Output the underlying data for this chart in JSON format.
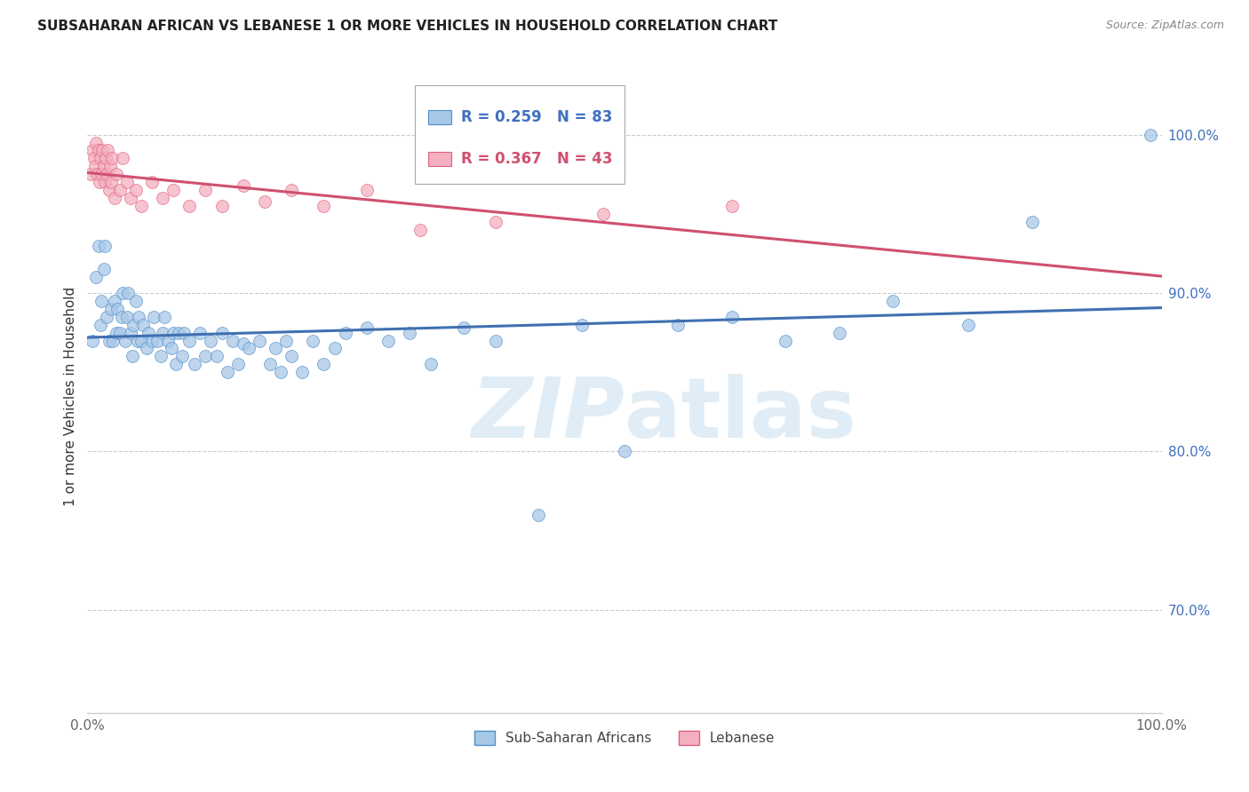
{
  "title": "SUBSAHARAN AFRICAN VS LEBANESE 1 OR MORE VEHICLES IN HOUSEHOLD CORRELATION CHART",
  "source": "Source: ZipAtlas.com",
  "ylabel": "1 or more Vehicles in Household",
  "ytick_labels": [
    "70.0%",
    "80.0%",
    "90.0%",
    "100.0%"
  ],
  "ytick_values": [
    0.7,
    0.8,
    0.9,
    1.0
  ],
  "xlim": [
    0.0,
    1.0
  ],
  "ylim": [
    0.635,
    1.035
  ],
  "legend_label1": "Sub-Saharan Africans",
  "legend_label2": "Lebanese",
  "r1": 0.259,
  "n1": 83,
  "r2": 0.367,
  "n2": 43,
  "color_blue": "#a8c8e8",
  "color_blue_edge": "#5090c8",
  "color_blue_line": "#4070b0",
  "color_pink": "#f4b0c0",
  "color_pink_edge": "#e06080",
  "color_pink_line": "#d05070",
  "color_blue_text": "#4070c0",
  "color_pink_text": "#d05070",
  "watermark_color": "#c8dff0",
  "blue_x": [
    0.005,
    0.008,
    0.01,
    0.012,
    0.013,
    0.015,
    0.016,
    0.018,
    0.02,
    0.022,
    0.024,
    0.025,
    0.027,
    0.028,
    0.03,
    0.032,
    0.033,
    0.035,
    0.037,
    0.038,
    0.04,
    0.042,
    0.043,
    0.045,
    0.047,
    0.048,
    0.05,
    0.052,
    0.055,
    0.057,
    0.06,
    0.062,
    0.065,
    0.068,
    0.07,
    0.072,
    0.075,
    0.078,
    0.08,
    0.082,
    0.085,
    0.088,
    0.09,
    0.095,
    0.1,
    0.105,
    0.11,
    0.115,
    0.12,
    0.125,
    0.13,
    0.135,
    0.14,
    0.145,
    0.15,
    0.16,
    0.17,
    0.175,
    0.18,
    0.185,
    0.19,
    0.2,
    0.21,
    0.22,
    0.23,
    0.24,
    0.26,
    0.28,
    0.3,
    0.32,
    0.35,
    0.38,
    0.42,
    0.46,
    0.5,
    0.55,
    0.6,
    0.65,
    0.7,
    0.75,
    0.82,
    0.88,
    0.99
  ],
  "blue_y": [
    0.87,
    0.91,
    0.93,
    0.88,
    0.895,
    0.915,
    0.93,
    0.885,
    0.87,
    0.89,
    0.87,
    0.895,
    0.875,
    0.89,
    0.875,
    0.885,
    0.9,
    0.87,
    0.885,
    0.9,
    0.875,
    0.86,
    0.88,
    0.895,
    0.87,
    0.885,
    0.87,
    0.88,
    0.865,
    0.875,
    0.87,
    0.885,
    0.87,
    0.86,
    0.875,
    0.885,
    0.87,
    0.865,
    0.875,
    0.855,
    0.875,
    0.86,
    0.875,
    0.87,
    0.855,
    0.875,
    0.86,
    0.87,
    0.86,
    0.875,
    0.85,
    0.87,
    0.855,
    0.868,
    0.865,
    0.87,
    0.855,
    0.865,
    0.85,
    0.87,
    0.86,
    0.85,
    0.87,
    0.855,
    0.865,
    0.875,
    0.878,
    0.87,
    0.875,
    0.855,
    0.878,
    0.87,
    0.76,
    0.88,
    0.8,
    0.88,
    0.885,
    0.87,
    0.875,
    0.895,
    0.88,
    0.945,
    1.0
  ],
  "pink_x": [
    0.003,
    0.005,
    0.006,
    0.007,
    0.008,
    0.009,
    0.01,
    0.011,
    0.012,
    0.013,
    0.014,
    0.015,
    0.016,
    0.017,
    0.018,
    0.019,
    0.02,
    0.021,
    0.022,
    0.023,
    0.025,
    0.027,
    0.03,
    0.033,
    0.037,
    0.04,
    0.045,
    0.05,
    0.06,
    0.07,
    0.08,
    0.095,
    0.11,
    0.125,
    0.145,
    0.165,
    0.19,
    0.22,
    0.26,
    0.31,
    0.38,
    0.48,
    0.6
  ],
  "pink_y": [
    0.975,
    0.99,
    0.985,
    0.98,
    0.995,
    0.975,
    0.99,
    0.97,
    0.985,
    0.975,
    0.99,
    0.98,
    0.97,
    0.985,
    0.975,
    0.99,
    0.965,
    0.98,
    0.97,
    0.985,
    0.96,
    0.975,
    0.965,
    0.985,
    0.97,
    0.96,
    0.965,
    0.955,
    0.97,
    0.96,
    0.965,
    0.955,
    0.965,
    0.955,
    0.968,
    0.958,
    0.965,
    0.955,
    0.965,
    0.94,
    0.945,
    0.95,
    0.955
  ]
}
